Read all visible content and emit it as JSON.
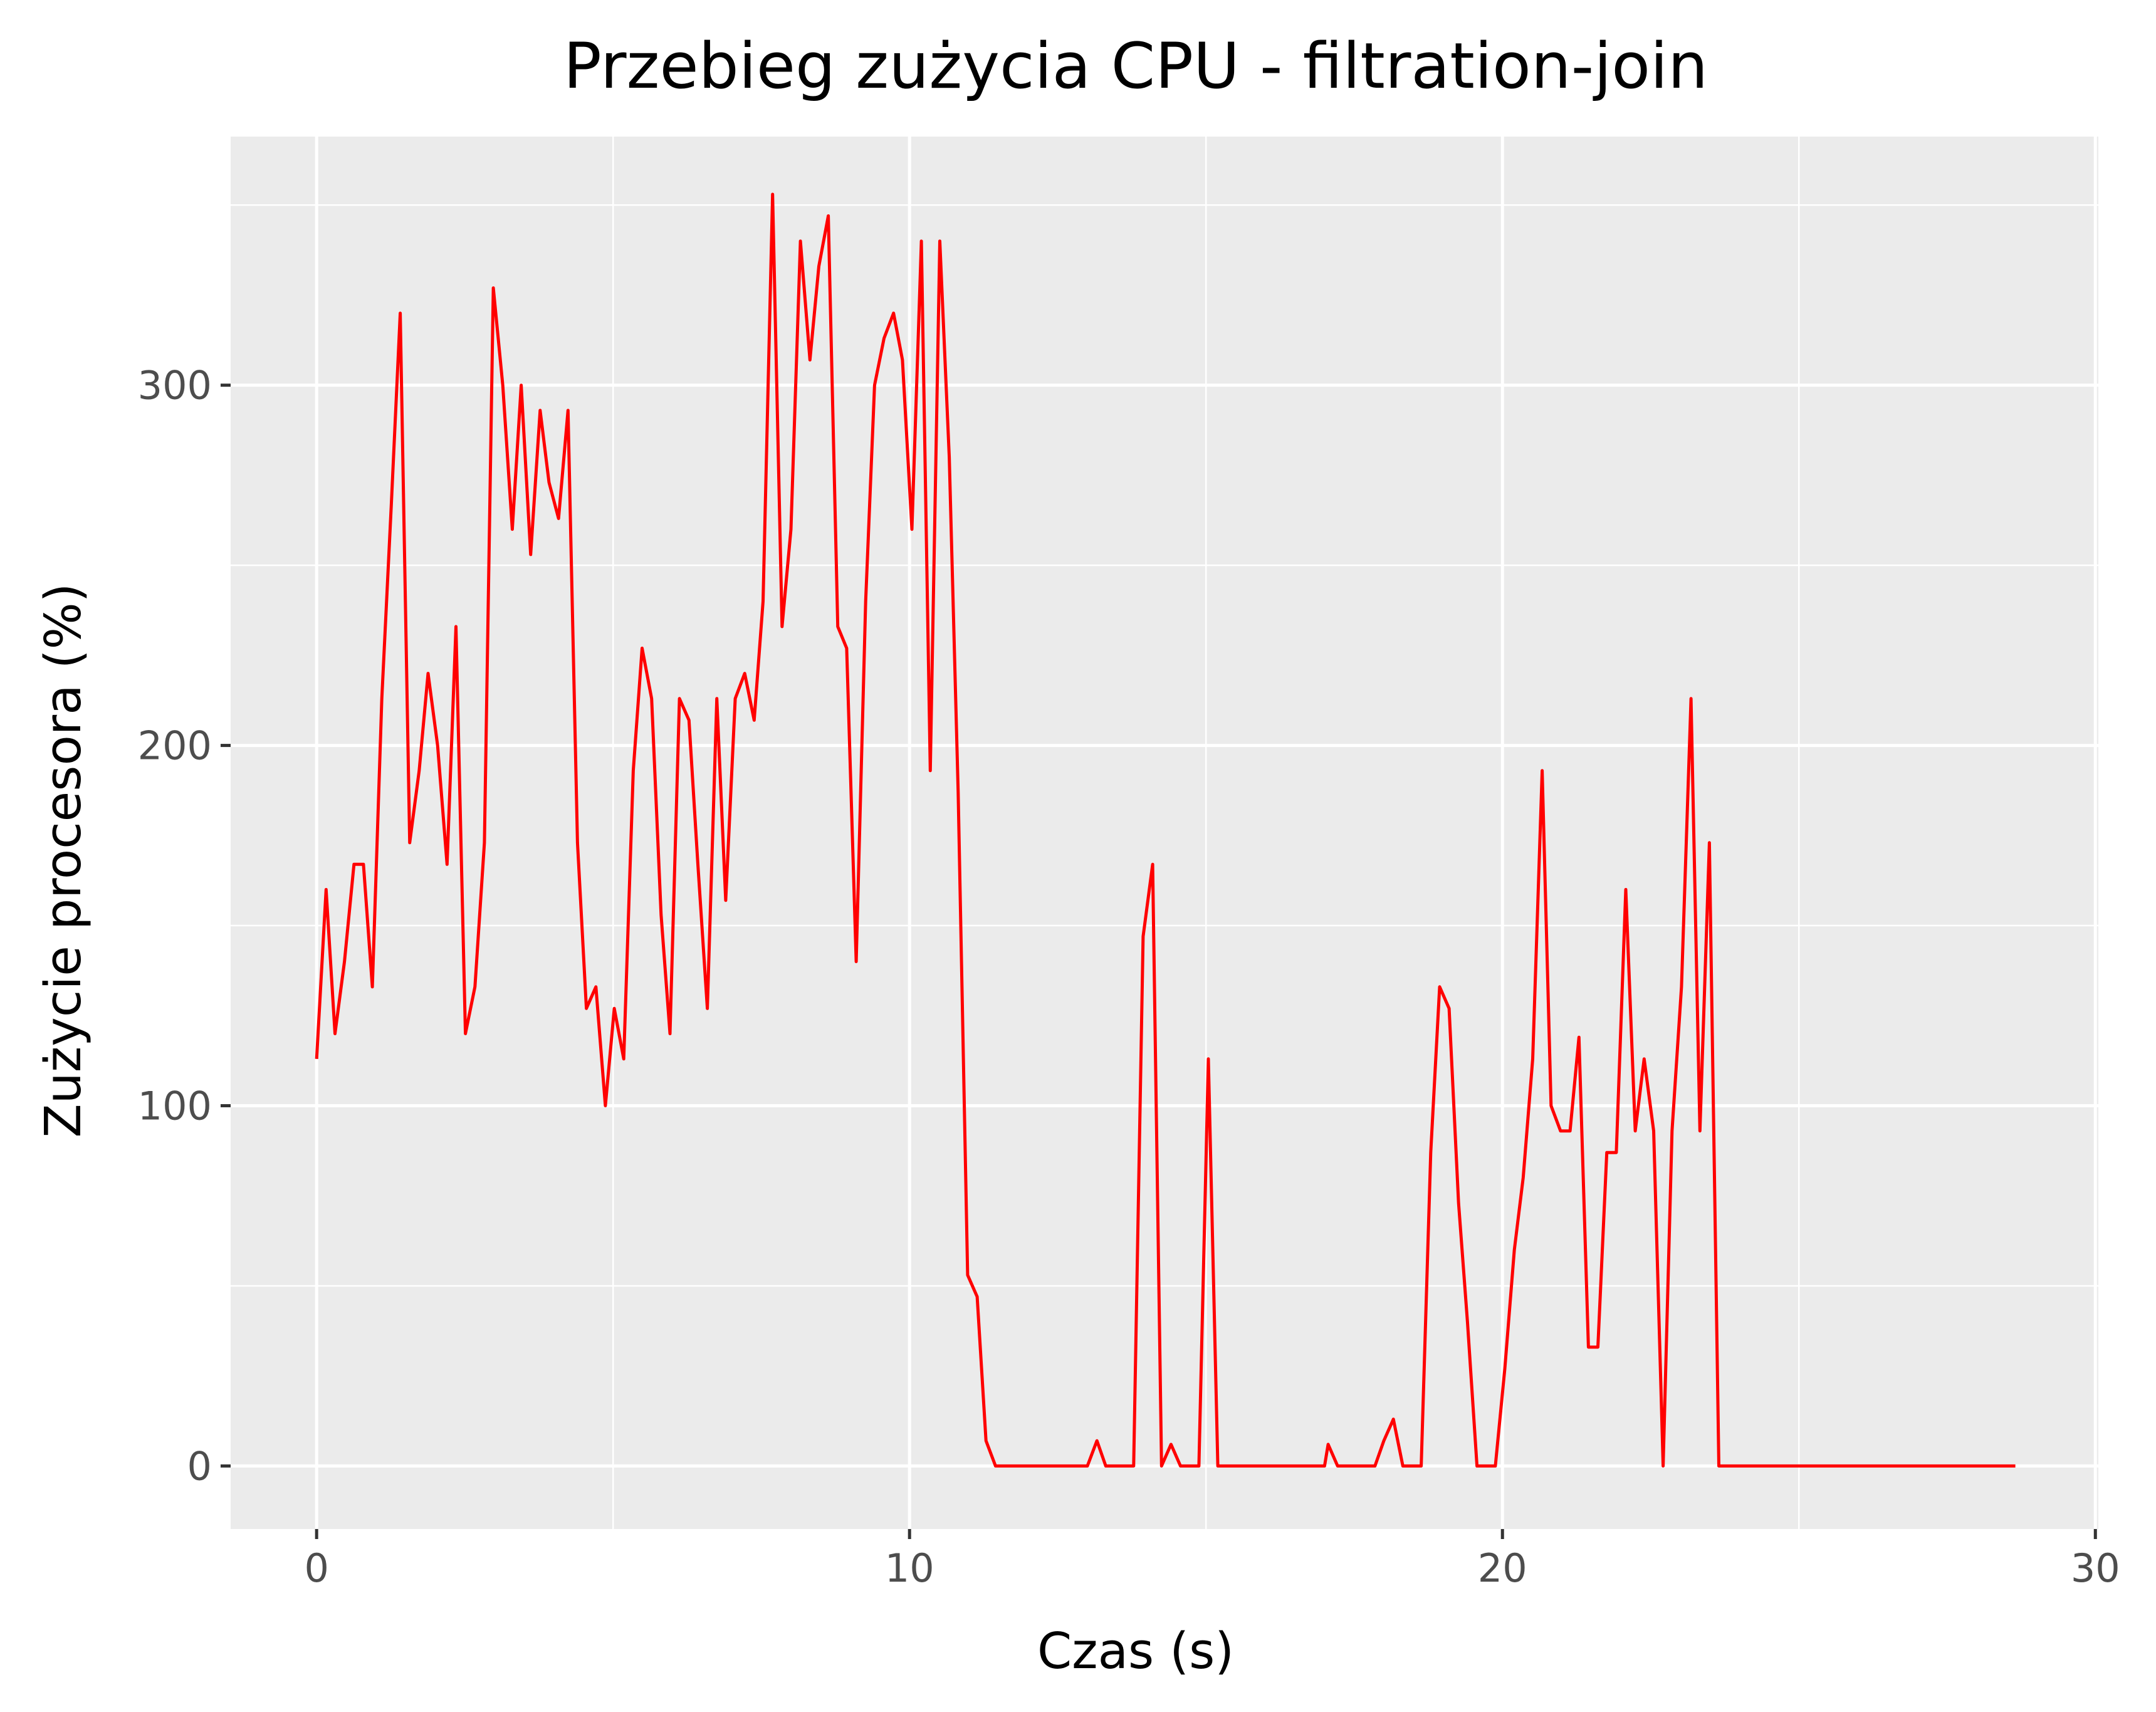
{
  "chart_data": {
    "type": "line",
    "title": "Przebieg zużycia CPU - filtration-join",
    "xlabel": "Czas (s)",
    "ylabel": "Zużycie procesora (%)",
    "xlim": [
      -1.45,
      30.05
    ],
    "ylim": [
      -17.5,
      369
    ],
    "x_ticks": [
      0,
      10,
      20,
      30
    ],
    "y_ticks": [
      0,
      100,
      200,
      300
    ],
    "x_tick_labels": [
      "0",
      "10",
      "20",
      "30"
    ],
    "y_tick_labels": [
      "0",
      "100",
      "200",
      "300"
    ],
    "grid": true,
    "legend": "none",
    "colors": {
      "panel": "#ebebeb",
      "grid": "#ffffff",
      "line": "#ff0000",
      "tick": "#333333"
    },
    "series": [
      {
        "points": [
          [
            0.0,
            113
          ],
          [
            0.16,
            160
          ],
          [
            0.31,
            120
          ],
          [
            0.47,
            140
          ],
          [
            0.63,
            167
          ],
          [
            0.79,
            167
          ],
          [
            0.94,
            133
          ],
          [
            1.1,
            213
          ],
          [
            1.26,
            267
          ],
          [
            1.41,
            320
          ],
          [
            1.57,
            173
          ],
          [
            1.73,
            193
          ],
          [
            1.88,
            220
          ],
          [
            2.04,
            200
          ],
          [
            2.2,
            167
          ],
          [
            2.35,
            233
          ],
          [
            2.51,
            120
          ],
          [
            2.67,
            133
          ],
          [
            2.83,
            173
          ],
          [
            2.98,
            327
          ],
          [
            3.14,
            300
          ],
          [
            3.3,
            260
          ],
          [
            3.45,
            300
          ],
          [
            3.61,
            253
          ],
          [
            3.77,
            293
          ],
          [
            3.92,
            273
          ],
          [
            4.08,
            263
          ],
          [
            4.24,
            293
          ],
          [
            4.4,
            173
          ],
          [
            4.55,
            127
          ],
          [
            4.71,
            133
          ],
          [
            4.87,
            100
          ],
          [
            5.02,
            127
          ],
          [
            5.18,
            113
          ],
          [
            5.34,
            193
          ],
          [
            5.49,
            227
          ],
          [
            5.65,
            213
          ],
          [
            5.81,
            153
          ],
          [
            5.96,
            120
          ],
          [
            6.12,
            213
          ],
          [
            6.28,
            207
          ],
          [
            6.43,
            167
          ],
          [
            6.59,
            127
          ],
          [
            6.75,
            213
          ],
          [
            6.9,
            157
          ],
          [
            7.06,
            213
          ],
          [
            7.22,
            220
          ],
          [
            7.38,
            207
          ],
          [
            7.53,
            240
          ],
          [
            7.69,
            353
          ],
          [
            7.85,
            233
          ],
          [
            8.0,
            260
          ],
          [
            8.16,
            340
          ],
          [
            8.32,
            307
          ],
          [
            8.47,
            333
          ],
          [
            8.63,
            347
          ],
          [
            8.79,
            233
          ],
          [
            8.94,
            227
          ],
          [
            9.1,
            140
          ],
          [
            9.26,
            240
          ],
          [
            9.41,
            300
          ],
          [
            9.57,
            313
          ],
          [
            9.73,
            320
          ],
          [
            9.88,
            307
          ],
          [
            10.04,
            260
          ],
          [
            10.2,
            340
          ],
          [
            10.35,
            193
          ],
          [
            10.51,
            340
          ],
          [
            10.67,
            280
          ],
          [
            10.82,
            187
          ],
          [
            10.98,
            53
          ],
          [
            11.14,
            47
          ],
          [
            11.29,
            7
          ],
          [
            11.45,
            0
          ],
          [
            11.61,
            0
          ],
          [
            12.0,
            0
          ],
          [
            12.5,
            0
          ],
          [
            13.0,
            0
          ],
          [
            13.16,
            7
          ],
          [
            13.31,
            0
          ],
          [
            13.47,
            0
          ],
          [
            13.63,
            0
          ],
          [
            13.78,
            0
          ],
          [
            13.94,
            147
          ],
          [
            14.1,
            167
          ],
          [
            14.25,
            0
          ],
          [
            14.41,
            6
          ],
          [
            14.57,
            0
          ],
          [
            14.73,
            0
          ],
          [
            14.88,
            0
          ],
          [
            15.04,
            113
          ],
          [
            15.2,
            0
          ],
          [
            15.35,
            0
          ],
          [
            16.0,
            0
          ],
          [
            16.5,
            0
          ],
          [
            17.0,
            0
          ],
          [
            17.06,
            6
          ],
          [
            17.22,
            0
          ],
          [
            17.38,
            0
          ],
          [
            17.53,
            0
          ],
          [
            17.69,
            0
          ],
          [
            17.85,
            0
          ],
          [
            18.0,
            7
          ],
          [
            18.16,
            13
          ],
          [
            18.32,
            0
          ],
          [
            18.47,
            0
          ],
          [
            18.63,
            0
          ],
          [
            18.79,
            87
          ],
          [
            18.94,
            133
          ],
          [
            19.1,
            127
          ],
          [
            19.26,
            73
          ],
          [
            19.41,
            40
          ],
          [
            19.57,
            0
          ],
          [
            19.73,
            0
          ],
          [
            19.88,
            0
          ],
          [
            20.04,
            27
          ],
          [
            20.2,
            60
          ],
          [
            20.35,
            80
          ],
          [
            20.51,
            113
          ],
          [
            20.67,
            193
          ],
          [
            20.82,
            100
          ],
          [
            20.98,
            93
          ],
          [
            21.14,
            93
          ],
          [
            21.29,
            119
          ],
          [
            21.45,
            33
          ],
          [
            21.61,
            33
          ],
          [
            21.76,
            87
          ],
          [
            21.92,
            87
          ],
          [
            22.08,
            160
          ],
          [
            22.24,
            93
          ],
          [
            22.39,
            113
          ],
          [
            22.55,
            93
          ],
          [
            22.71,
            0
          ],
          [
            22.86,
            93
          ],
          [
            23.02,
            133
          ],
          [
            23.18,
            213
          ],
          [
            23.33,
            93
          ],
          [
            23.49,
            173
          ],
          [
            23.65,
            0
          ],
          [
            23.8,
            0
          ],
          [
            24.5,
            0
          ],
          [
            25.5,
            0
          ],
          [
            26.5,
            0
          ],
          [
            27.5,
            0
          ],
          [
            28.65,
            0
          ]
        ]
      }
    ]
  }
}
